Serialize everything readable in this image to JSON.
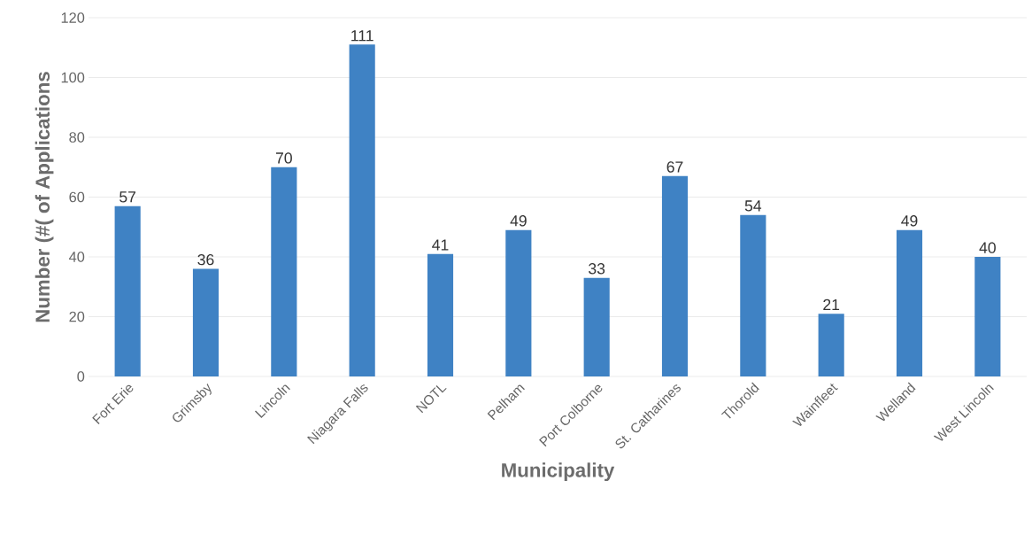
{
  "chart_data": {
    "type": "bar",
    "xlabel": "Municipality",
    "ylabel": "Number (#( of Applications",
    "categories": [
      "Fort Erie",
      "Grimsby",
      "Lincoln",
      "Niagara Falls",
      "NOTL",
      "Pelham",
      "Port Colborne",
      "St. Catharines",
      "Thorold",
      "Wainfleet",
      "Welland",
      "West Lincoln"
    ],
    "values": [
      57,
      36,
      70,
      111,
      41,
      49,
      33,
      67,
      54,
      21,
      49,
      40
    ],
    "color": "#3f82c4",
    "ylim": [
      0,
      120
    ],
    "yticks": [
      0,
      20,
      40,
      60,
      80,
      100,
      120
    ],
    "grid": "y",
    "data_labels": true
  }
}
